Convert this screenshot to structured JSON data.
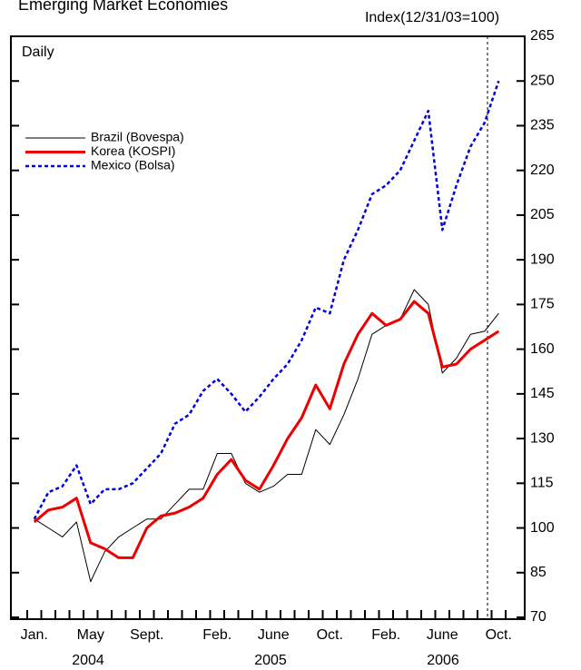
{
  "chart_data": {
    "type": "line",
    "title": "Emerging Market Economies",
    "y_axis_label": "Index(12/31/03=100)",
    "frequency_label": "Daily",
    "categories": [
      "Jan.",
      null,
      null,
      null,
      "May",
      null,
      null,
      null,
      "Sept.",
      null,
      null,
      null,
      null,
      "Feb.",
      null,
      null,
      null,
      "June",
      null,
      null,
      null,
      "Oct.",
      null,
      null,
      null,
      "Feb.",
      null,
      null,
      null,
      "June",
      null,
      null,
      null,
      "Oct."
    ],
    "year_labels": [
      "2004",
      "2005",
      "2006"
    ],
    "series": [
      {
        "name": "Brazil (Bovespa)",
        "color": "#000000",
        "style": "solid",
        "width": 1,
        "values": [
          103,
          100,
          97,
          102,
          82,
          92,
          97,
          100,
          103,
          103,
          108,
          113,
          113,
          125,
          125,
          115,
          112,
          114,
          118,
          118,
          133,
          128,
          138,
          150,
          165,
          168,
          170,
          180,
          175,
          152,
          157,
          165,
          166,
          172
        ]
      },
      {
        "name": "Korea (KOSPI)",
        "color": "#ee0000",
        "style": "solid",
        "width": 3,
        "values": [
          102,
          106,
          107,
          110,
          95,
          93,
          90,
          90,
          100,
          104,
          105,
          107,
          110,
          118,
          123,
          116,
          113,
          121,
          130,
          137,
          148,
          140,
          155,
          165,
          172,
          168,
          170,
          176,
          172,
          154,
          155,
          160,
          163,
          166
        ]
      },
      {
        "name": "Mexico (Bolsa)",
        "color": "#0000dd",
        "style": "dashed",
        "width": 2.5,
        "values": [
          103,
          112,
          114,
          121,
          108,
          113,
          113,
          115,
          120,
          125,
          135,
          138,
          146,
          150,
          145,
          139,
          144,
          150,
          155,
          163,
          174,
          172,
          190,
          200,
          212,
          215,
          220,
          230,
          240,
          200,
          215,
          228,
          236,
          250
        ]
      }
    ],
    "ylim": [
      70,
      265
    ],
    "yticks": [
      70,
      85,
      100,
      115,
      130,
      145,
      160,
      175,
      190,
      205,
      220,
      235,
      250,
      265
    ],
    "legend": "upper left"
  }
}
